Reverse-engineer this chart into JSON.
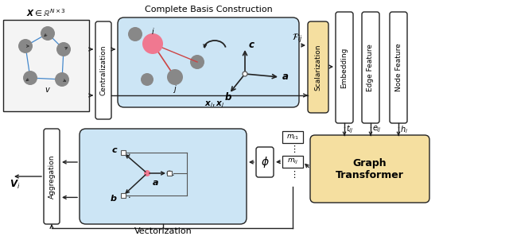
{
  "bg_color": "#ffffff",
  "light_blue": "#cce5f5",
  "light_yellow": "#f5dfa0",
  "white": "#ffffff",
  "gray_node": "#888888",
  "pink_node": "#f07890",
  "dark": "#222222",
  "blue_edge": "#4488cc",
  "red_edge": "#cc4444",
  "cbc_title": "Complete Basis Construction",
  "vec_label": "Vectorization",
  "cent_label": "Centralization",
  "scal_label": "Scalarization",
  "emb_label": "Embedding",
  "ef_label": "Edge Feature",
  "nf_label": "Node Feature",
  "agg_label": "Aggregation",
  "gt_label": "Graph\nTransformer"
}
